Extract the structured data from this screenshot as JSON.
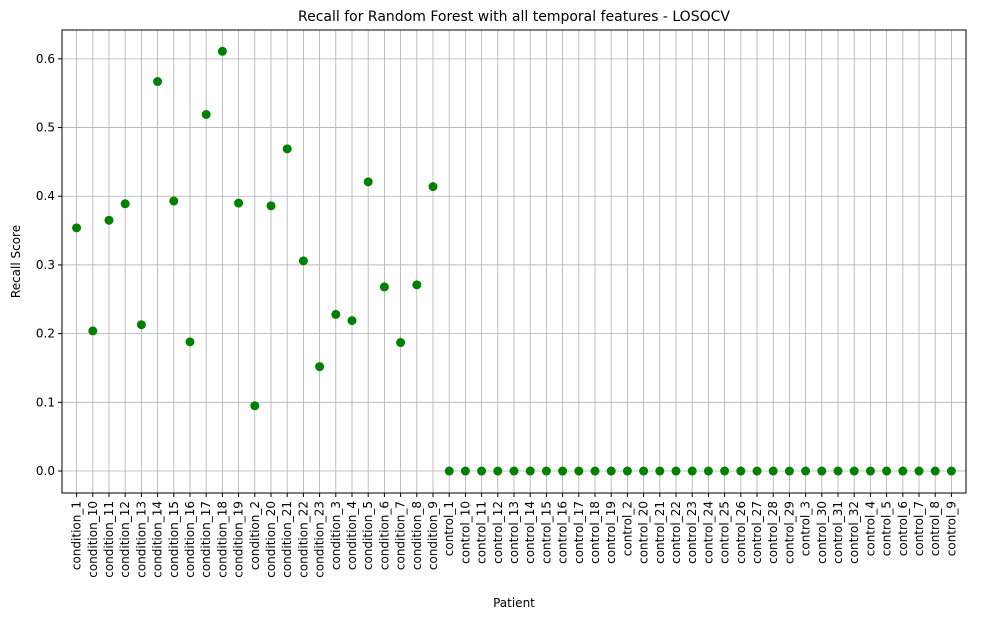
{
  "chart_data": {
    "type": "scatter",
    "title": "Recall for Random Forest with all temporal features - LOSOCV",
    "xlabel": "Patient",
    "ylabel": "Recall Score",
    "ylim": [
      -0.032,
      0.642
    ],
    "yticks": [
      "0.0",
      "0.1",
      "0.2",
      "0.3",
      "0.4",
      "0.5",
      "0.6"
    ],
    "grid": true,
    "marker_color": "#008000",
    "categories": [
      "condition_1",
      "condition_10",
      "condition_11",
      "condition_12",
      "condition_13",
      "condition_14",
      "condition_15",
      "condition_16",
      "condition_17",
      "condition_18",
      "condition_19",
      "condition_2",
      "condition_20",
      "condition_21",
      "condition_22",
      "condition_23",
      "condition_3",
      "condition_4",
      "condition_5",
      "condition_6",
      "condition_7",
      "condition_8",
      "condition_9",
      "control_1",
      "control_10",
      "control_11",
      "control_12",
      "control_13",
      "control_14",
      "control_15",
      "control_16",
      "control_17",
      "control_18",
      "control_19",
      "control_2",
      "control_20",
      "control_21",
      "control_22",
      "control_23",
      "control_24",
      "control_25",
      "control_26",
      "control_27",
      "control_28",
      "control_29",
      "control_3",
      "control_30",
      "control_31",
      "control_32",
      "control_4",
      "control_5",
      "control_6",
      "control_7",
      "control_8",
      "control_9"
    ],
    "values": [
      0.354,
      0.204,
      0.365,
      0.389,
      0.213,
      0.567,
      0.393,
      0.188,
      0.519,
      0.611,
      0.39,
      0.095,
      0.386,
      0.469,
      0.306,
      0.152,
      0.228,
      0.219,
      0.421,
      0.268,
      0.187,
      0.271,
      0.414,
      0,
      0,
      0,
      0,
      0,
      0,
      0,
      0,
      0,
      0,
      0,
      0,
      0,
      0,
      0,
      0,
      0,
      0,
      0,
      0,
      0,
      0,
      0,
      0,
      0,
      0,
      0,
      0,
      0,
      0,
      0,
      0
    ]
  }
}
